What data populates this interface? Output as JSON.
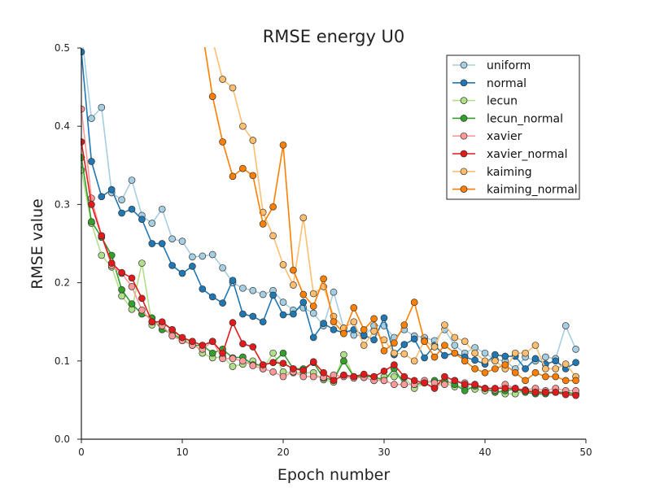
{
  "chart_data": {
    "type": "line",
    "title": "RMSE energy U0",
    "xlabel": "Epoch number",
    "ylabel": "RMSE value",
    "xlim": [
      0,
      50
    ],
    "ylim": [
      0,
      0.5
    ],
    "xticks": [
      0,
      10,
      20,
      30,
      40,
      50
    ],
    "yticks": [
      0.0,
      0.1,
      0.2,
      0.3,
      0.4,
      0.5
    ],
    "xtick_labels": [
      "0",
      "10",
      "20",
      "30",
      "40",
      "50"
    ],
    "ytick_labels": [
      "0.0",
      "0.1",
      "0.2",
      "0.3",
      "0.4",
      "0.5"
    ],
    "grid": false,
    "legend_position": "top-right",
    "x": [
      0,
      1,
      2,
      3,
      4,
      5,
      6,
      7,
      8,
      9,
      10,
      11,
      12,
      13,
      14,
      15,
      16,
      17,
      18,
      19,
      20,
      21,
      22,
      23,
      24,
      25,
      26,
      27,
      28,
      29,
      30,
      31,
      32,
      33,
      34,
      35,
      36,
      37,
      38,
      39,
      40,
      41,
      42,
      43,
      44,
      45,
      46,
      47,
      48,
      49
    ],
    "series": [
      {
        "name": "uniform",
        "color": "#a6cee3",
        "values": [
          0.52,
          0.41,
          0.424,
          0.315,
          0.306,
          0.331,
          0.286,
          0.276,
          0.294,
          0.256,
          0.253,
          0.233,
          0.234,
          0.236,
          0.219,
          0.2,
          0.193,
          0.19,
          0.185,
          0.19,
          0.175,
          0.165,
          0.168,
          0.161,
          0.145,
          0.188,
          0.142,
          0.133,
          0.132,
          0.145,
          0.145,
          0.13,
          0.14,
          0.132,
          0.13,
          0.126,
          0.14,
          0.12,
          0.11,
          0.117,
          0.11,
          0.102,
          0.1,
          0.09,
          0.105,
          0.1,
          0.105,
          0.103,
          0.145,
          0.115
        ]
      },
      {
        "name": "normal",
        "color": "#1f78b4",
        "values": [
          0.495,
          0.355,
          0.31,
          0.319,
          0.289,
          0.294,
          0.281,
          0.25,
          0.25,
          0.222,
          0.212,
          0.221,
          0.192,
          0.182,
          0.174,
          0.203,
          0.16,
          0.157,
          0.15,
          0.184,
          0.159,
          0.16,
          0.175,
          0.13,
          0.148,
          0.14,
          0.136,
          0.14,
          0.133,
          0.127,
          0.155,
          0.108,
          0.121,
          0.128,
          0.104,
          0.12,
          0.107,
          0.11,
          0.105,
          0.101,
          0.096,
          0.108,
          0.106,
          0.106,
          0.09,
          0.103,
          0.096,
          0.1,
          0.09,
          0.098
        ]
      },
      {
        "name": "lecun",
        "color": "#b2df8a",
        "values": [
          0.344,
          0.276,
          0.235,
          0.22,
          0.183,
          0.166,
          0.225,
          0.146,
          0.148,
          0.14,
          0.128,
          0.124,
          0.11,
          0.104,
          0.105,
          0.093,
          0.096,
          0.1,
          0.09,
          0.11,
          0.086,
          0.085,
          0.085,
          0.085,
          0.076,
          0.073,
          0.108,
          0.08,
          0.079,
          0.075,
          0.08,
          0.08,
          0.079,
          0.065,
          0.072,
          0.066,
          0.072,
          0.067,
          0.068,
          0.064,
          0.062,
          0.062,
          0.058,
          0.058,
          0.062,
          0.062,
          0.06,
          0.06,
          0.058,
          0.057
        ]
      },
      {
        "name": "lecun_normal",
        "color": "#33a02c",
        "values": [
          0.36,
          0.278,
          0.258,
          0.235,
          0.191,
          0.173,
          0.16,
          0.155,
          0.14,
          0.135,
          0.127,
          0.12,
          0.12,
          0.11,
          0.115,
          0.104,
          0.105,
          0.095,
          0.095,
          0.098,
          0.11,
          0.09,
          0.09,
          0.098,
          0.078,
          0.076,
          0.1,
          0.08,
          0.08,
          0.08,
          0.075,
          0.09,
          0.07,
          0.07,
          0.072,
          0.075,
          0.075,
          0.07,
          0.062,
          0.068,
          0.065,
          0.06,
          0.062,
          0.064,
          0.06,
          0.058,
          0.058,
          0.06,
          0.06,
          0.058
        ]
      },
      {
        "name": "xavier",
        "color": "#fb9a99",
        "values": [
          0.422,
          0.308,
          0.26,
          0.222,
          0.212,
          0.195,
          0.165,
          0.15,
          0.145,
          0.132,
          0.126,
          0.12,
          0.115,
          0.125,
          0.103,
          0.103,
          0.1,
          0.094,
          0.09,
          0.086,
          0.08,
          0.086,
          0.08,
          0.08,
          0.079,
          0.082,
          0.08,
          0.078,
          0.079,
          0.075,
          0.075,
          0.07,
          0.07,
          0.07,
          0.075,
          0.072,
          0.07,
          0.075,
          0.072,
          0.07,
          0.065,
          0.063,
          0.07,
          0.065,
          0.063,
          0.065,
          0.062,
          0.065,
          0.062,
          0.062
        ]
      },
      {
        "name": "xavier_normal",
        "color": "#e31a1c",
        "values": [
          0.38,
          0.3,
          0.26,
          0.225,
          0.213,
          0.206,
          0.18,
          0.15,
          0.15,
          0.14,
          0.13,
          0.125,
          0.12,
          0.125,
          0.11,
          0.149,
          0.122,
          0.118,
          0.095,
          0.098,
          0.097,
          0.09,
          0.088,
          0.099,
          0.085,
          0.075,
          0.082,
          0.08,
          0.083,
          0.08,
          0.087,
          0.095,
          0.08,
          0.075,
          0.072,
          0.065,
          0.08,
          0.075,
          0.07,
          0.07,
          0.065,
          0.065,
          0.065,
          0.065,
          0.062,
          0.06,
          0.06,
          0.06,
          0.057,
          0.056
        ]
      },
      {
        "name": "kaiming",
        "color": "#fdbf6f",
        "values": [
          null,
          null,
          null,
          null,
          null,
          null,
          null,
          null,
          null,
          null,
          null,
          null,
          null,
          0.51,
          0.46,
          0.449,
          0.4,
          0.382,
          0.29,
          0.26,
          0.223,
          0.197,
          0.283,
          0.186,
          0.195,
          0.157,
          0.142,
          0.15,
          0.12,
          0.138,
          0.127,
          0.11,
          0.109,
          0.1,
          0.126,
          0.118,
          0.146,
          0.13,
          0.125,
          0.11,
          0.1,
          0.1,
          0.09,
          0.11,
          0.11,
          0.12,
          0.09,
          0.09,
          0.096,
          0.08
        ]
      },
      {
        "name": "kaiming_normal",
        "color": "#ff7f00",
        "values": [
          null,
          null,
          null,
          null,
          null,
          null,
          null,
          null,
          null,
          null,
          null,
          null,
          0.52,
          0.438,
          0.38,
          0.336,
          0.346,
          0.337,
          0.275,
          0.297,
          0.376,
          0.216,
          0.185,
          0.17,
          0.205,
          0.15,
          0.135,
          0.168,
          0.14,
          0.154,
          0.113,
          0.123,
          0.146,
          0.175,
          0.125,
          0.105,
          0.12,
          0.11,
          0.1,
          0.09,
          0.085,
          0.09,
          0.095,
          0.085,
          0.075,
          0.085,
          0.08,
          0.08,
          0.075,
          0.075
        ]
      }
    ]
  }
}
